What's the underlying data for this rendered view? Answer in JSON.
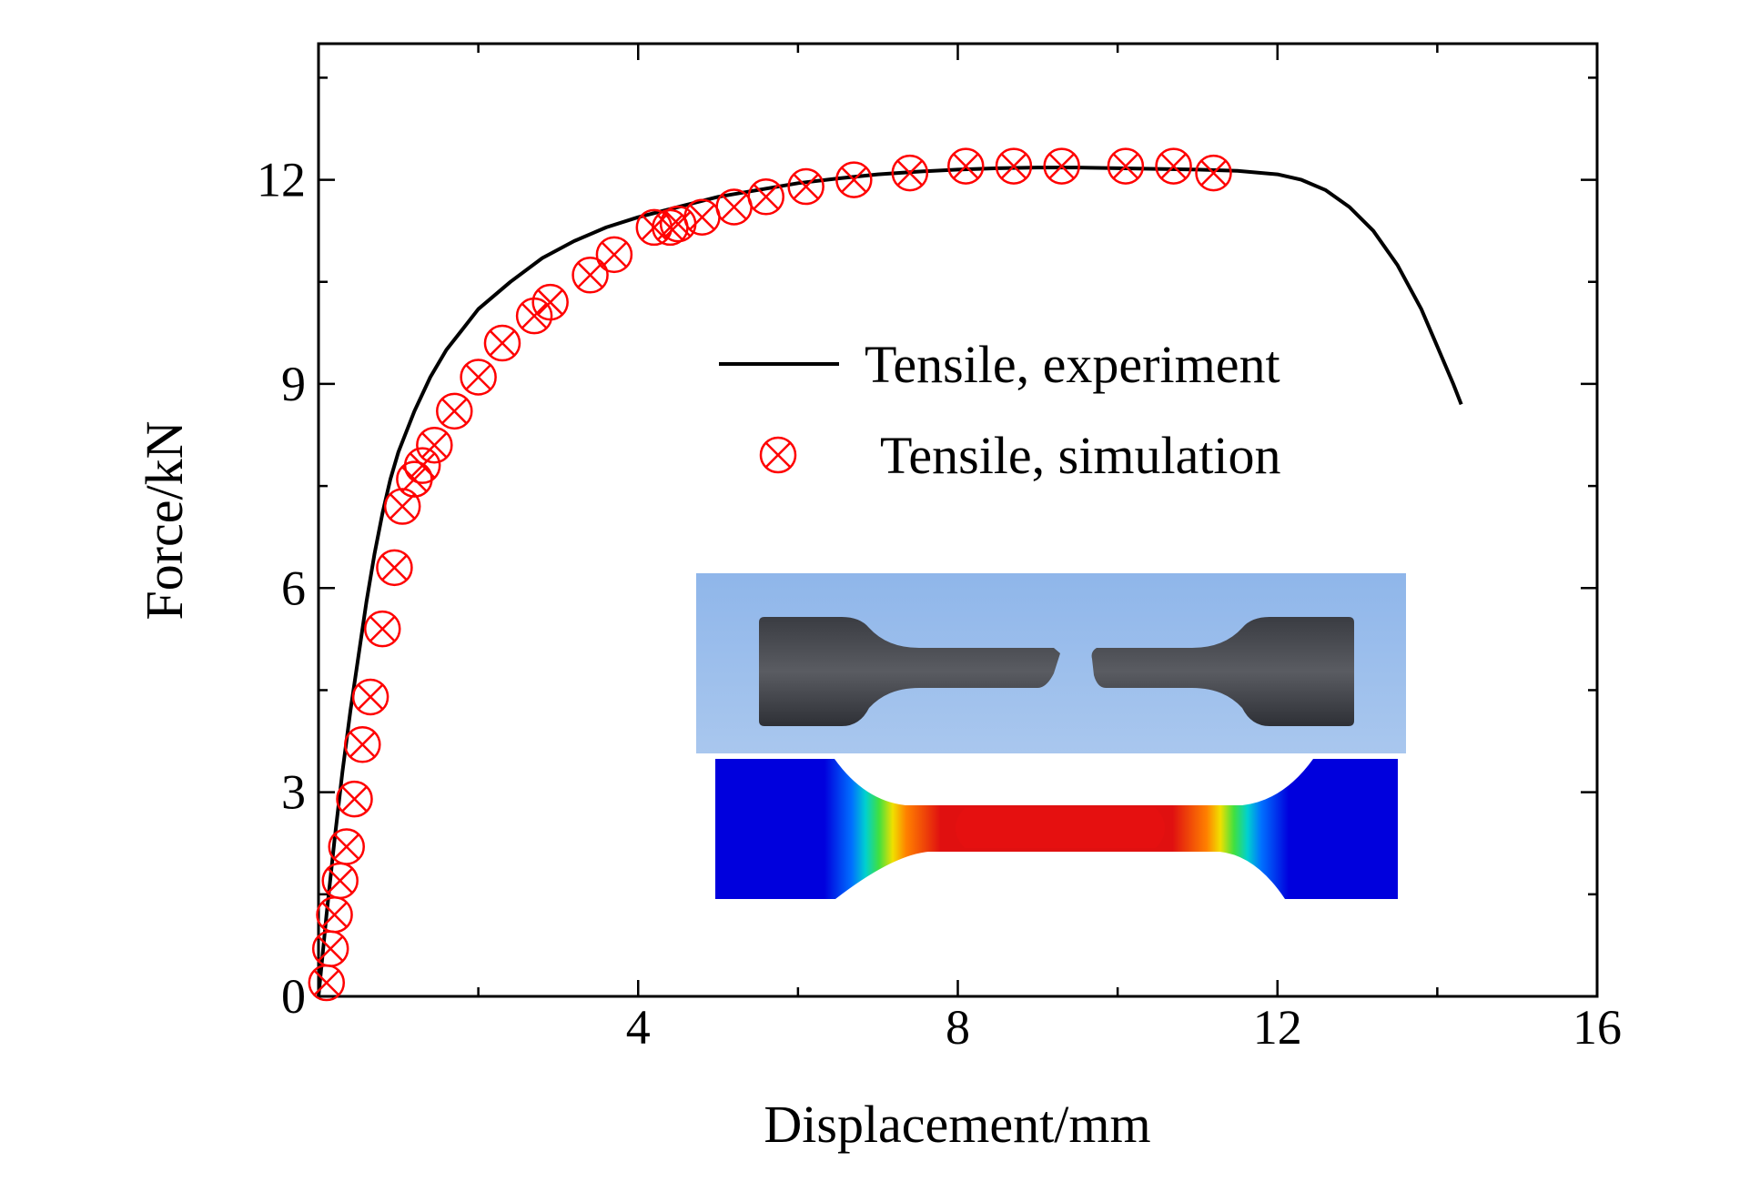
{
  "chart_data": {
    "type": "line",
    "xlabel": "Displacement/mm",
    "ylabel": "Force/kN",
    "xlim": [
      0,
      16
    ],
    "ylim": [
      0,
      14
    ],
    "x_ticks": [
      4,
      8,
      12,
      16
    ],
    "y_ticks": [
      0,
      3,
      6,
      9,
      12
    ],
    "grid": false,
    "legend_position": "center-right",
    "colors": {
      "experiment": "#000000",
      "simulation": "#ff0000"
    },
    "series": [
      {
        "name": "Tensile, experiment",
        "style": "line",
        "x": [
          0.0,
          0.1,
          0.2,
          0.3,
          0.4,
          0.5,
          0.6,
          0.7,
          0.8,
          0.9,
          1.0,
          1.2,
          1.4,
          1.6,
          1.8,
          2.0,
          2.4,
          2.8,
          3.2,
          3.6,
          4.0,
          4.5,
          5.0,
          5.5,
          6.0,
          6.5,
          7.0,
          7.5,
          8.0,
          8.5,
          9.0,
          9.5,
          10.0,
          10.5,
          11.0,
          11.5,
          12.0,
          12.3,
          12.6,
          12.9,
          13.2,
          13.5,
          13.8,
          14.0,
          14.2,
          14.3
        ],
        "y": [
          0.0,
          1.2,
          2.3,
          3.3,
          4.2,
          5.0,
          5.8,
          6.5,
          7.1,
          7.6,
          8.0,
          8.6,
          9.1,
          9.5,
          9.8,
          10.1,
          10.5,
          10.85,
          11.1,
          11.3,
          11.45,
          11.6,
          11.75,
          11.85,
          11.95,
          12.02,
          12.08,
          12.12,
          12.15,
          12.17,
          12.18,
          12.18,
          12.17,
          12.16,
          12.15,
          12.13,
          12.08,
          12.0,
          11.85,
          11.6,
          11.25,
          10.75,
          10.1,
          9.55,
          9.0,
          8.7
        ]
      },
      {
        "name": "Tensile, simulation",
        "style": "markers",
        "x": [
          0.1,
          0.15,
          0.2,
          0.27,
          0.35,
          0.45,
          0.55,
          0.65,
          0.8,
          0.95,
          1.05,
          1.2,
          1.3,
          1.45,
          1.7,
          2.0,
          2.3,
          2.7,
          2.9,
          3.4,
          3.7,
          4.2,
          4.4,
          4.5,
          4.8,
          5.2,
          5.6,
          6.1,
          6.7,
          7.4,
          8.1,
          8.7,
          9.3,
          10.1,
          10.7,
          11.2
        ],
        "y": [
          0.2,
          0.7,
          1.2,
          1.7,
          2.2,
          2.9,
          3.7,
          4.4,
          5.4,
          6.3,
          7.2,
          7.6,
          7.8,
          8.1,
          8.6,
          9.1,
          9.6,
          10.0,
          10.2,
          10.6,
          10.9,
          11.3,
          11.3,
          11.35,
          11.45,
          11.6,
          11.75,
          11.9,
          12.0,
          12.1,
          12.2,
          12.2,
          12.2,
          12.2,
          12.2,
          12.1
        ]
      }
    ]
  }
}
